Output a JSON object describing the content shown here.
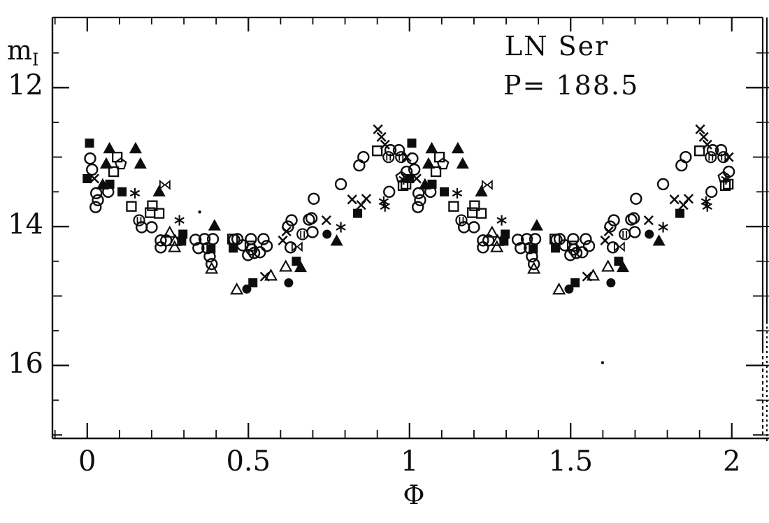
{
  "figure": {
    "title_line1": "LN Ser",
    "title_line2": "P= 188.5",
    "x_axis_label": "Φ",
    "y_axis_label_main": "m",
    "y_axis_label_sub": "I"
  },
  "chart_data": {
    "type": "scatter",
    "title": "LN Ser",
    "subtitle": "P= 188.5",
    "xlabel": "Φ",
    "ylabel": "m_I",
    "xlim": [
      -0.108,
      2.096
    ],
    "ylim": [
      17.05,
      10.99
    ],
    "y_axis_inverted_magnitudes": true,
    "grid": false,
    "legend": "none",
    "x_major_ticks": [
      {
        "value": 0,
        "label": "0"
      },
      {
        "value": 0.5,
        "label": "0.5"
      },
      {
        "value": 1,
        "label": "1"
      },
      {
        "value": 1.5,
        "label": "1.5"
      },
      {
        "value": 2,
        "label": "2"
      }
    ],
    "x_minor_tick_step": 0.1,
    "x_minor_tick_range": [
      -0.1,
      2.0
    ],
    "y_major_ticks": [
      {
        "value": 12,
        "label": "12"
      },
      {
        "value": 14,
        "label": "14"
      },
      {
        "value": 16,
        "label": "16"
      }
    ],
    "y_minor_tick_step": 0.5,
    "y_minor_tick_range": [
      11.5,
      17.0
    ],
    "phase_duplicate_offset": 1,
    "colors": {
      "foreground": "#0d0d0d",
      "background": "#ffffff"
    },
    "series": [
      {
        "name": "open-circle",
        "marker": "circle-open",
        "duplicate": true,
        "points": [
          [
            0.009,
            13.02
          ],
          [
            0.015,
            13.18
          ],
          [
            0.026,
            13.72
          ],
          [
            0.028,
            13.52
          ],
          [
            0.033,
            13.62
          ],
          [
            0.065,
            13.5
          ],
          [
            0.169,
            14.01
          ],
          [
            0.2,
            14.01
          ],
          [
            0.228,
            14.2
          ],
          [
            0.245,
            14.2
          ],
          [
            0.228,
            14.3
          ],
          [
            0.336,
            14.19
          ],
          [
            0.345,
            14.31
          ],
          [
            0.364,
            14.18
          ],
          [
            0.373,
            14.31
          ],
          [
            0.38,
            14.43
          ],
          [
            0.386,
            14.54
          ],
          [
            0.39,
            14.18
          ],
          [
            0.456,
            14.19
          ],
          [
            0.466,
            14.18
          ],
          [
            0.482,
            14.27
          ],
          [
            0.499,
            14.41
          ],
          [
            0.508,
            14.18
          ],
          [
            0.51,
            14.33
          ],
          [
            0.518,
            14.38
          ],
          [
            0.536,
            14.37
          ],
          [
            0.547,
            14.18
          ],
          [
            0.557,
            14.28
          ],
          [
            0.623,
            14.0
          ],
          [
            0.631,
            14.3
          ],
          [
            0.634,
            13.91
          ],
          [
            0.688,
            13.9
          ],
          [
            0.696,
            13.88
          ],
          [
            0.699,
            14.08
          ],
          [
            0.703,
            13.6
          ],
          [
            0.787,
            13.39
          ],
          [
            0.844,
            13.12
          ],
          [
            0.857,
            13.0
          ],
          [
            0.937,
            13.5
          ],
          [
            0.941,
            12.9
          ],
          [
            0.967,
            12.9
          ],
          [
            0.991,
            13.21
          ]
        ]
      },
      {
        "name": "open-square",
        "marker": "square-open",
        "duplicate": true,
        "points": [
          [
            0.082,
            13.21
          ],
          [
            0.093,
            13.0
          ],
          [
            0.137,
            13.71
          ],
          [
            0.195,
            13.8
          ],
          [
            0.202,
            13.7
          ],
          [
            0.223,
            13.81
          ],
          [
            0.451,
            14.18
          ],
          [
            0.505,
            14.28
          ],
          [
            0.9,
            12.91
          ],
          [
            0.98,
            13.41
          ],
          [
            0.989,
            13.39
          ]
        ]
      },
      {
        "name": "filled-square",
        "marker": "square-filled",
        "duplicate": true,
        "points": [
          [
            0.0,
            13.31
          ],
          [
            0.007,
            12.8
          ],
          [
            0.07,
            13.39
          ],
          [
            0.108,
            13.5
          ],
          [
            0.293,
            14.21
          ],
          [
            0.297,
            14.11
          ],
          [
            0.384,
            14.32
          ],
          [
            0.453,
            14.31
          ],
          [
            0.514,
            14.81
          ],
          [
            0.649,
            14.5
          ],
          [
            0.839,
            13.81
          ]
        ]
      },
      {
        "name": "filled-triangle",
        "marker": "triangle-filled",
        "duplicate": true,
        "points": [
          [
            0.048,
            13.4
          ],
          [
            0.059,
            13.1
          ],
          [
            0.069,
            12.88
          ],
          [
            0.15,
            12.88
          ],
          [
            0.165,
            13.1
          ],
          [
            0.223,
            13.5
          ],
          [
            0.395,
            13.99
          ],
          [
            0.662,
            14.59
          ],
          [
            0.774,
            14.21
          ]
        ]
      },
      {
        "name": "open-triangle",
        "marker": "triangle-open",
        "duplicate": true,
        "points": [
          [
            0.256,
            14.09
          ],
          [
            0.271,
            14.3
          ],
          [
            0.273,
            14.21
          ],
          [
            0.386,
            14.61
          ],
          [
            0.464,
            14.91
          ],
          [
            0.57,
            14.71
          ],
          [
            0.616,
            14.58
          ]
        ]
      },
      {
        "name": "filled-circle",
        "marker": "circle-filled",
        "duplicate": true,
        "points": [
          [
            0.495,
            14.9
          ],
          [
            0.625,
            14.81
          ],
          [
            0.744,
            14.11
          ]
        ]
      },
      {
        "name": "cross",
        "marker": "cross",
        "duplicate": true,
        "points": [
          [
            0.022,
            13.31
          ],
          [
            0.551,
            14.72
          ],
          [
            0.607,
            14.2
          ],
          [
            0.618,
            14.07
          ],
          [
            0.742,
            13.91
          ],
          [
            0.822,
            13.61
          ],
          [
            0.85,
            13.69
          ],
          [
            0.866,
            13.6
          ],
          [
            0.902,
            12.6
          ],
          [
            0.913,
            12.71
          ],
          [
            0.924,
            12.82
          ],
          [
            0.991,
            13.0
          ]
        ]
      },
      {
        "name": "asterisk",
        "marker": "asterisk",
        "duplicate": true,
        "points": [
          [
            0.148,
            13.52
          ],
          [
            0.286,
            13.91
          ],
          [
            0.787,
            14.01
          ],
          [
            0.92,
            13.64
          ],
          [
            0.924,
            13.71
          ],
          [
            0.982,
            13.32
          ]
        ]
      },
      {
        "name": "bowtie",
        "marker": "bowtie",
        "duplicate": true,
        "points": [
          [
            0.241,
            13.4
          ],
          [
            0.651,
            14.29
          ]
        ]
      },
      {
        "name": "barred-circle",
        "marker": "circle-barred",
        "duplicate": true,
        "points": [
          [
            0.161,
            13.91
          ],
          [
            0.668,
            14.11
          ],
          [
            0.935,
            13.0
          ],
          [
            0.974,
            13.0
          ]
        ]
      },
      {
        "name": "open-pentagon",
        "marker": "pentagon-open",
        "duplicate": true,
        "points": [
          [
            0.104,
            13.1
          ],
          [
            0.975,
            13.29
          ]
        ]
      },
      {
        "name": "speck-dot",
        "marker": "dot",
        "duplicate": false,
        "points": [
          [
            0.349,
            13.79
          ],
          [
            1.599,
            15.96
          ]
        ]
      }
    ]
  }
}
